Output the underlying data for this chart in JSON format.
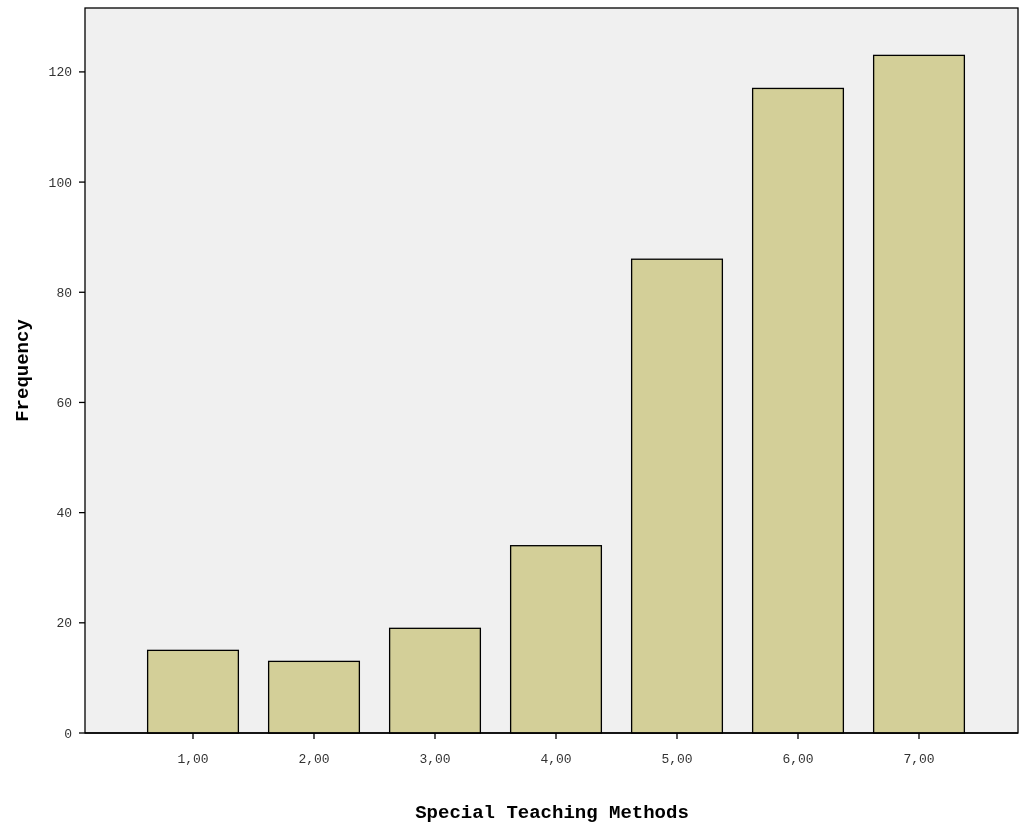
{
  "chart_data": {
    "type": "bar",
    "xlabel": "Special Teaching Methods",
    "ylabel": "Frequency",
    "categories": [
      "1,00",
      "2,00",
      "3,00",
      "4,00",
      "5,00",
      "6,00",
      "7,00"
    ],
    "values": [
      15,
      13,
      19,
      34,
      86,
      117,
      123
    ],
    "color": "#d3cf98",
    "ylim": [
      0,
      131.6
    ],
    "yticks": [
      0,
      20,
      40,
      60,
      80,
      100,
      120
    ],
    "grid": false
  }
}
